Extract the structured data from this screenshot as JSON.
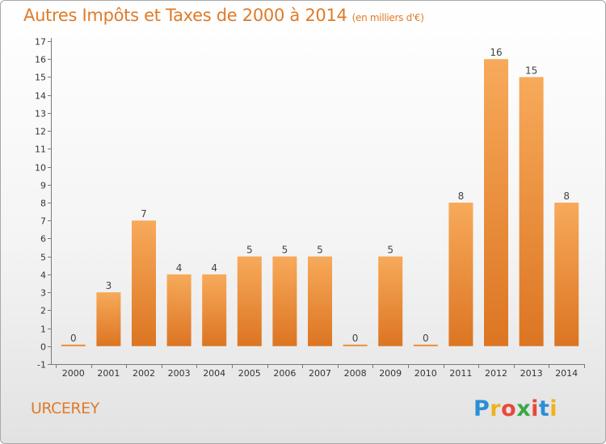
{
  "header": {
    "title": "Autres Impôts et Taxes de 2000 à 2014",
    "unit": "(en milliers d'€)"
  },
  "footer": {
    "commune": "URCEREY",
    "brand_letters": [
      "P",
      "r",
      "o",
      "x",
      "i",
      "t",
      "i"
    ],
    "brand_colors": [
      "#2a8fd6",
      "#f0b21c",
      "#e8493a",
      "#3aa745",
      "#e8493a",
      "#2a8fd6",
      "#f0b21c"
    ]
  },
  "colors": {
    "accent": "#e07a28",
    "bar_top": "#f7aa5a",
    "bar_bottom": "#dc7522"
  },
  "chart_data": {
    "type": "bar",
    "title": "Autres Impôts et Taxes de 2000 à 2014",
    "subtitle": "(en milliers d'€)",
    "categories": [
      "2000",
      "2001",
      "2002",
      "2003",
      "2004",
      "2005",
      "2006",
      "2007",
      "2008",
      "2009",
      "2010",
      "2011",
      "2012",
      "2013",
      "2014"
    ],
    "values": [
      0,
      3,
      7,
      4,
      4,
      5,
      5,
      5,
      0,
      5,
      0,
      8,
      16,
      15,
      8
    ],
    "data_labels": [
      "0",
      "3",
      "7",
      "4",
      "4",
      "5",
      "5",
      "5",
      "0",
      "5",
      "0",
      "8",
      "16",
      "15",
      "8"
    ],
    "ylim": [
      -1,
      17
    ],
    "yticks": [
      -1,
      0,
      1,
      2,
      3,
      4,
      5,
      6,
      7,
      8,
      9,
      10,
      11,
      12,
      13,
      14,
      15,
      16,
      17
    ],
    "grid": false
  }
}
